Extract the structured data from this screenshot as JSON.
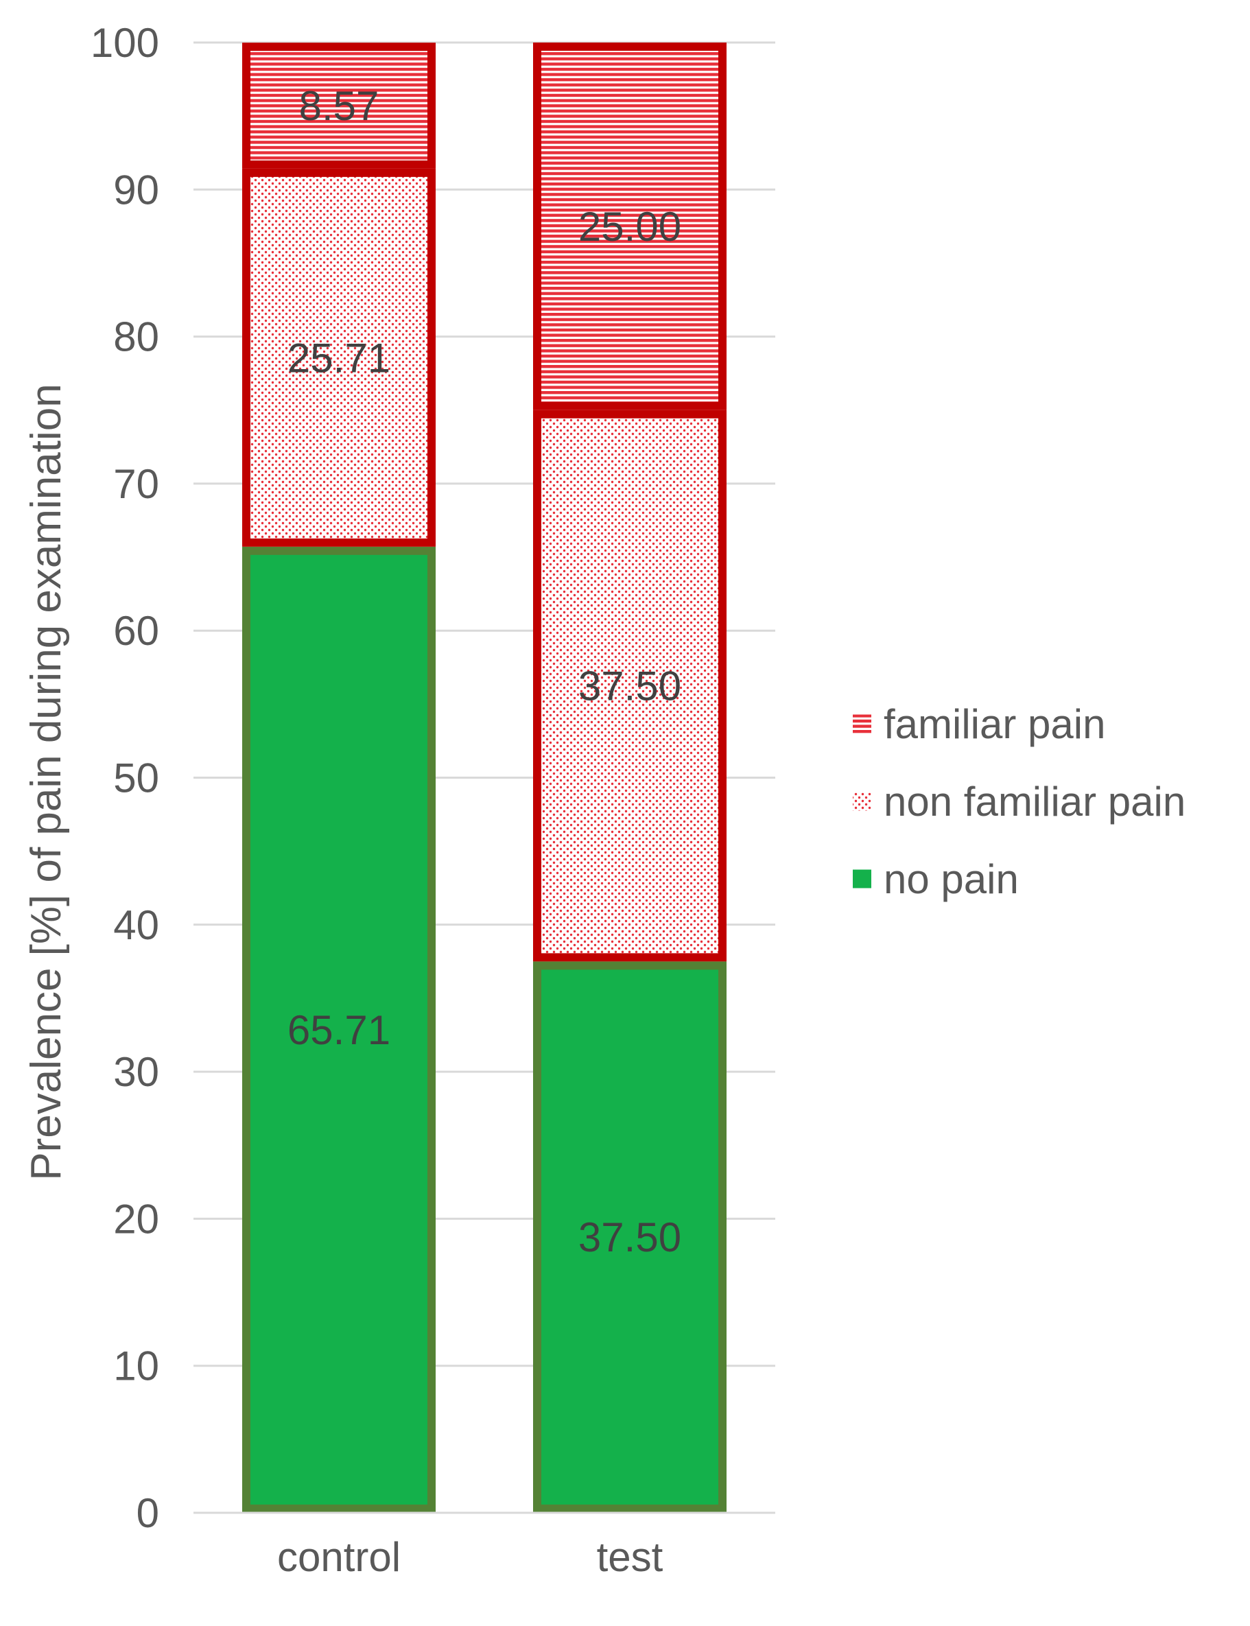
{
  "chart_data": {
    "type": "bar",
    "stacked": true,
    "title": "",
    "xlabel": "",
    "ylabel": "Prevalence [%] of pain during examination",
    "ylim": [
      0,
      100
    ],
    "yticks": [
      0,
      10,
      20,
      30,
      40,
      50,
      60,
      70,
      80,
      90,
      100
    ],
    "grid": true,
    "legend_position": "right",
    "categories": [
      "control",
      "test"
    ],
    "series": [
      {
        "name": "no pain",
        "values": [
          65.71,
          37.5
        ],
        "labels": [
          "65.71",
          "37.50"
        ],
        "fill": "#14b14b",
        "edge": "#548235",
        "pattern": "solid"
      },
      {
        "name": "non familiar pain",
        "values": [
          25.71,
          37.5
        ],
        "labels": [
          "25.71",
          "37.50"
        ],
        "fill": "#e8303a",
        "edge": "#c00000",
        "pattern": "dots"
      },
      {
        "name": "familiar pain",
        "values": [
          8.57,
          25.0
        ],
        "labels": [
          "8.57",
          "25.00"
        ],
        "fill": "#e8303a",
        "edge": "#c00000",
        "pattern": "stripes"
      }
    ],
    "legend_order": [
      2,
      1,
      0
    ],
    "colors": {
      "text": "#595959",
      "label": "#404040",
      "grid": "#d9d9d9",
      "axis": "#d9d9d9"
    }
  }
}
